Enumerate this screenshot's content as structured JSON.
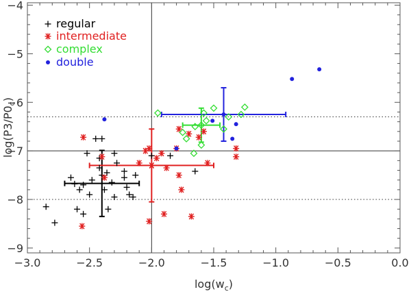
{
  "chart_data": {
    "type": "scatter",
    "xlabel": "log(w",
    "xlabel_sub": "c",
    "xlabel_tail": ")",
    "ylabel": "log(P3/P0",
    "ylabel_sub": "c",
    "ylabel_tail": ")",
    "xlim": [
      -3.0,
      0.0
    ],
    "ylim": [
      -9.1,
      -3.95
    ],
    "x_ticks": [
      -3.0,
      -2.5,
      -2.0,
      -1.5,
      -1.0,
      -0.5,
      0.0
    ],
    "x_tick_labels": [
      "−3.0",
      "−2.5",
      "−2.0",
      "−1.5",
      "−1.0",
      "−0.5",
      "0.0"
    ],
    "y_ticks": [
      -9,
      -8,
      -7,
      -6,
      -5,
      -4
    ],
    "y_tick_labels": [
      "−9",
      "−8",
      "−7",
      "−6",
      "−5",
      "−4"
    ],
    "reference_lines": {
      "solid_vertical_x": -2.0,
      "solid_horizontal_y": -7.0,
      "dotted_horizontal_y": [
        -6.3,
        -8.0
      ]
    },
    "legend_position": "top-left",
    "series": [
      {
        "name": "regular",
        "color": "#000000",
        "marker": "plus",
        "points": [
          [
            -2.85,
            -8.15
          ],
          [
            -2.78,
            -8.48
          ],
          [
            -2.65,
            -7.55
          ],
          [
            -2.62,
            -7.68
          ],
          [
            -2.6,
            -8.2
          ],
          [
            -2.58,
            -7.8
          ],
          [
            -2.55,
            -7.7
          ],
          [
            -2.5,
            -7.9
          ],
          [
            -2.52,
            -7.05
          ],
          [
            -2.48,
            -7.6
          ],
          [
            -2.45,
            -6.75
          ],
          [
            -2.42,
            -7.35
          ],
          [
            -2.4,
            -7.5
          ],
          [
            -2.4,
            -6.75
          ],
          [
            -2.38,
            -7.8
          ],
          [
            -2.35,
            -8.2
          ],
          [
            -2.36,
            -7.45
          ],
          [
            -2.32,
            -7.65
          ],
          [
            -2.3,
            -7.95
          ],
          [
            -2.3,
            -7.05
          ],
          [
            -2.28,
            -7.25
          ],
          [
            -2.22,
            -7.55
          ],
          [
            -2.2,
            -7.75
          ],
          [
            -2.18,
            -7.9
          ],
          [
            -2.15,
            -7.95
          ],
          [
            -2.13,
            -7.5
          ],
          [
            -2.42,
            -7.15
          ],
          [
            -2.0,
            -7.1
          ],
          [
            -2.22,
            -7.42
          ],
          [
            -2.55,
            -8.3
          ],
          [
            -1.85,
            -7.1
          ],
          [
            -1.65,
            -7.42
          ]
        ],
        "mean": [
          -2.4,
          -7.67
        ],
        "xerr": 0.3,
        "yerr": 0.68
      },
      {
        "name": "intermediate",
        "color": "#e02020",
        "marker": "asterisk",
        "points": [
          [
            -2.55,
            -6.72
          ],
          [
            -2.56,
            -8.55
          ],
          [
            -2.4,
            -7.12
          ],
          [
            -2.38,
            -7.55
          ],
          [
            -2.1,
            -7.25
          ],
          [
            -2.05,
            -7.0
          ],
          [
            -2.02,
            -6.95
          ],
          [
            -2.02,
            -8.45
          ],
          [
            -2.0,
            -7.3
          ],
          [
            -1.96,
            -7.15
          ],
          [
            -1.92,
            -7.05
          ],
          [
            -1.9,
            -8.3
          ],
          [
            -1.88,
            -7.35
          ],
          [
            -1.8,
            -6.95
          ],
          [
            -1.78,
            -7.5
          ],
          [
            -1.78,
            -6.55
          ],
          [
            -1.76,
            -7.8
          ],
          [
            -1.7,
            -6.65
          ],
          [
            -1.68,
            -8.35
          ],
          [
            -1.62,
            -6.72
          ],
          [
            -1.58,
            -6.6
          ],
          [
            -1.55,
            -7.25
          ],
          [
            -1.32,
            -6.95
          ],
          [
            -1.32,
            -7.12
          ]
        ],
        "mean": [
          -2.0,
          -7.3
        ],
        "xerr": 0.5,
        "yerr": 0.75
      },
      {
        "name": "complex",
        "color": "#33dd33",
        "marker": "diamond",
        "points": [
          [
            -1.95,
            -6.22
          ],
          [
            -1.75,
            -6.62
          ],
          [
            -1.72,
            -6.75
          ],
          [
            -1.65,
            -6.5
          ],
          [
            -1.6,
            -6.88
          ],
          [
            -1.58,
            -6.22
          ],
          [
            -1.56,
            -6.38
          ],
          [
            -1.5,
            -6.12
          ],
          [
            -1.42,
            -6.55
          ],
          [
            -1.38,
            -6.3
          ],
          [
            -1.28,
            -6.25
          ],
          [
            -1.25,
            -6.1
          ],
          [
            -1.66,
            -7.05
          ]
        ],
        "mean": [
          -1.6,
          -6.47
        ],
        "xerr": 0.15,
        "yerr": 0.35
      },
      {
        "name": "double",
        "color": "#2222dd",
        "marker": "dot",
        "points": [
          [
            -2.38,
            -6.35
          ],
          [
            -1.8,
            -6.95
          ],
          [
            -1.51,
            -6.38
          ],
          [
            -1.35,
            -6.75
          ],
          [
            -1.32,
            -6.45
          ],
          [
            -0.87,
            -5.52
          ],
          [
            -0.65,
            -5.32
          ]
        ],
        "mean": [
          -1.42,
          -6.25
        ],
        "xerr": 0.5,
        "yerr": 0.55
      }
    ]
  }
}
